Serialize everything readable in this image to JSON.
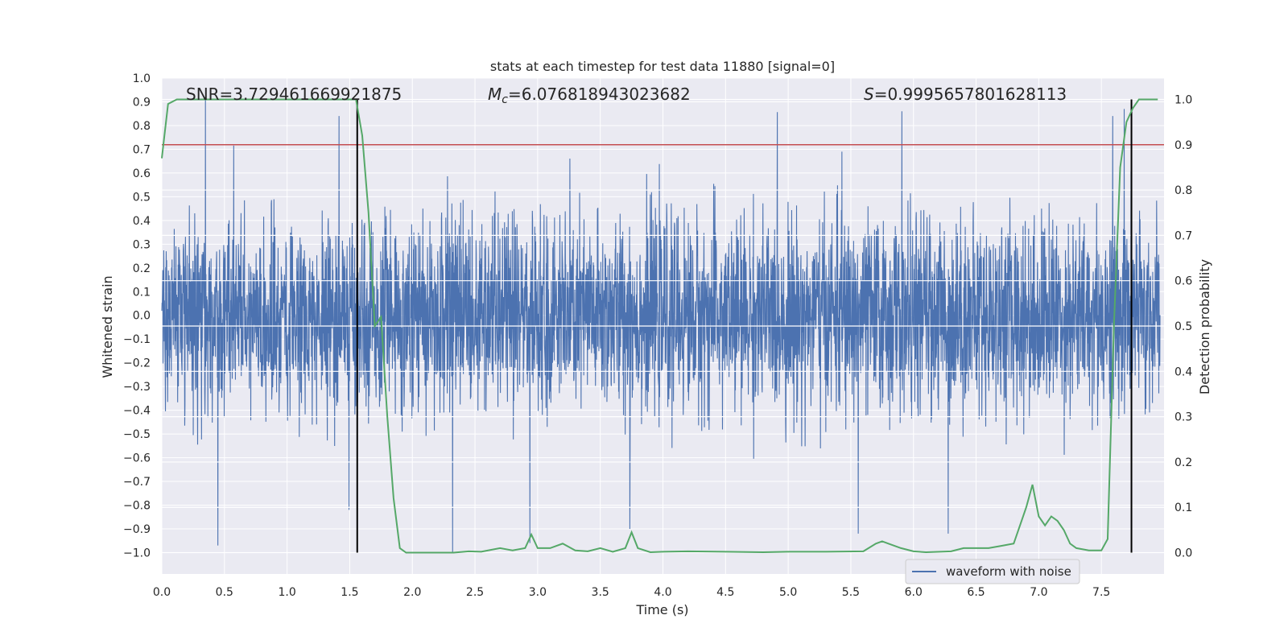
{
  "chart_data": {
    "type": "line",
    "title": "stats at each timestep for test data 11880 [signal=0]",
    "xlabel": "Time (s)",
    "ylabel": "Whitened strain",
    "y2label": "Detection probability",
    "xlim": [
      0.0,
      8.0
    ],
    "ylim": [
      -1.09,
      1.0
    ],
    "y2lim": [
      -0.047,
      1.047
    ],
    "x_ticks": [
      0.0,
      0.5,
      1.0,
      1.5,
      2.0,
      2.5,
      3.0,
      3.5,
      4.0,
      4.5,
      5.0,
      5.5,
      6.0,
      6.5,
      7.0,
      7.5
    ],
    "x_tick_labels": [
      "0.0",
      "0.5",
      "1.0",
      "1.5",
      "2.0",
      "2.5",
      "3.0",
      "3.5",
      "4.0",
      "4.5",
      "5.0",
      "5.5",
      "6.0",
      "6.5",
      "7.0",
      "7.5"
    ],
    "y_ticks": [
      1.0,
      0.9,
      0.8,
      0.7,
      0.6,
      0.5,
      0.4,
      0.3,
      0.2,
      0.1,
      0.0,
      -0.1,
      -0.2,
      -0.3,
      -0.4,
      -0.5,
      -0.6,
      -0.7,
      -0.8,
      -0.9,
      -1.0
    ],
    "y_tick_labels": [
      "1.0",
      "0.9",
      "0.8",
      "0.7",
      "0.6",
      "0.5",
      "0.4",
      "0.3",
      "0.2",
      "0.1",
      "0.0",
      "−0.1",
      "−0.2",
      "−0.3",
      "−0.4",
      "−0.5",
      "−0.6",
      "−0.7",
      "−0.8",
      "−0.9",
      "−1.0"
    ],
    "y2_ticks": [
      1.0,
      0.9,
      0.8,
      0.7,
      0.6,
      0.5,
      0.4,
      0.3,
      0.2,
      0.1,
      0.0
    ],
    "y2_tick_labels": [
      "1.0",
      "0.9",
      "0.8",
      "0.7",
      "0.6",
      "0.5",
      "0.4",
      "0.3",
      "0.2",
      "0.1",
      "0.0"
    ],
    "annotations": {
      "snr": "SNR=3.729461669921875",
      "mc_symbol": "M",
      "mc_sub": "c",
      "mc_value": "=6.076818943023682",
      "s_symbol": "S",
      "s_value": "=0.9995657801628113"
    },
    "threshold": {
      "axis": "y2",
      "value": 0.9,
      "color": "#c44e52"
    },
    "vlines": {
      "x": [
        1.56,
        7.74
      ],
      "y_range": [
        -1.0,
        0.91
      ],
      "color": "#000000"
    },
    "legend": {
      "entries": [
        "waveform with noise"
      ],
      "location": "lower-right"
    },
    "series": [
      {
        "name": "waveform with noise",
        "axis": "y",
        "color": "#4c72b0",
        "kind": "noise",
        "n_samples": 4096,
        "typical_range": [
          -0.43,
          0.43
        ],
        "extremes": [
          [
            0.35,
            0.92
          ],
          [
            0.45,
            -0.97
          ],
          [
            1.42,
            0.84
          ],
          [
            1.5,
            -0.82
          ],
          [
            2.33,
            -1.0
          ],
          [
            2.95,
            -0.96
          ],
          [
            3.75,
            -0.9
          ],
          [
            5.45,
            0.69
          ],
          [
            5.58,
            -0.92
          ],
          [
            5.93,
            0.86
          ],
          [
            6.3,
            -0.92
          ],
          [
            7.62,
            0.84
          ],
          [
            7.71,
            0.87
          ]
        ]
      },
      {
        "name": "detection probability",
        "axis": "y2",
        "color": "#55a868",
        "x": [
          0.0,
          0.05,
          0.12,
          0.3,
          0.6,
          0.9,
          1.2,
          1.4,
          1.55,
          1.6,
          1.65,
          1.7,
          1.75,
          1.8,
          1.85,
          1.9,
          1.95,
          2.0,
          2.2,
          2.33,
          2.45,
          2.55,
          2.7,
          2.8,
          2.9,
          2.95,
          3.0,
          3.1,
          3.2,
          3.3,
          3.4,
          3.5,
          3.6,
          3.7,
          3.75,
          3.8,
          3.9,
          4.0,
          4.2,
          4.5,
          4.8,
          5.0,
          5.3,
          5.6,
          5.7,
          5.75,
          5.8,
          5.9,
          6.0,
          6.1,
          6.3,
          6.4,
          6.6,
          6.7,
          6.8,
          6.9,
          6.95,
          7.0,
          7.05,
          7.1,
          7.15,
          7.2,
          7.25,
          7.3,
          7.4,
          7.5,
          7.55,
          7.6,
          7.65,
          7.7,
          7.75,
          7.8,
          7.85,
          7.9,
          7.95
        ],
        "values": [
          0.87,
          0.99,
          1.0,
          1.0,
          1.0,
          1.0,
          1.0,
          1.0,
          1.0,
          0.92,
          0.75,
          0.5,
          0.52,
          0.3,
          0.12,
          0.01,
          0.0,
          0.0,
          0.0,
          0.0,
          0.003,
          0.002,
          0.01,
          0.005,
          0.01,
          0.04,
          0.01,
          0.01,
          0.02,
          0.005,
          0.003,
          0.01,
          0.002,
          0.01,
          0.045,
          0.01,
          0.001,
          0.002,
          0.003,
          0.002,
          0.001,
          0.002,
          0.002,
          0.003,
          0.02,
          0.025,
          0.02,
          0.01,
          0.003,
          0.001,
          0.003,
          0.01,
          0.01,
          0.015,
          0.02,
          0.1,
          0.15,
          0.08,
          0.06,
          0.08,
          0.07,
          0.05,
          0.02,
          0.01,
          0.005,
          0.005,
          0.03,
          0.5,
          0.85,
          0.95,
          0.98,
          1.0,
          1.0,
          1.0,
          1.0
        ]
      }
    ]
  }
}
